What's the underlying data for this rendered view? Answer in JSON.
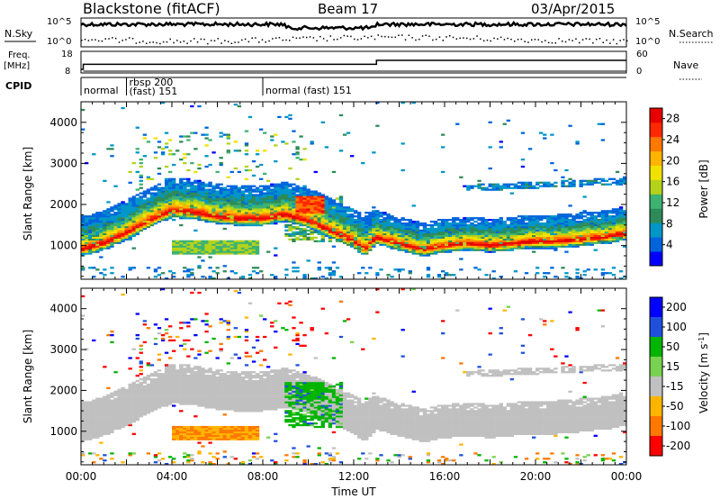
{
  "header": {
    "station": "Blackstone (fitACF)",
    "beam": "Beam 17",
    "date": "03/Apr/2015"
  },
  "strip_labels": {
    "nsky": "N.Sky",
    "nsearch": "N.Search",
    "freq_line1": "Freq.",
    "freq_line2": "[MHz]",
    "nave": "Nave",
    "cpid": "CPID"
  },
  "noise_axis": {
    "left_ticks": [
      "10^5",
      "10^0"
    ],
    "right_ticks": [
      "10^5",
      "10^0"
    ]
  },
  "freq_axis": {
    "left_ticks": [
      "18",
      "8"
    ],
    "right_ticks": [
      "60",
      "0"
    ]
  },
  "cpid_segments": [
    {
      "start_hour": 0.0,
      "label_line1": "normal",
      "label_line2": ""
    },
    {
      "start_hour": 2.0,
      "label_line1": "rbsp 200",
      "label_line2": "(fast) 151"
    },
    {
      "start_hour": 8.0,
      "label_line1": "normal (fast) 151",
      "label_line2": ""
    }
  ],
  "frequency_series": {
    "name": "Freq. [MHz]",
    "x_hours": [
      0.0,
      0.1,
      0.1,
      13.0,
      13.0,
      24.0
    ],
    "y_mhz": [
      8.0,
      8.0,
      10.8,
      10.8,
      13.0,
      13.0
    ]
  },
  "chart_data": [
    {
      "type": "heatmap",
      "name": "power-panel",
      "xlabel": "",
      "ylabel": "Slant Range [km]",
      "xlim": [
        0,
        24
      ],
      "ylim": [
        180,
        4500
      ],
      "y_ticks": [
        "1000",
        "2000",
        "3000",
        "4000"
      ],
      "y_tick_values": [
        1000,
        2000,
        3000,
        4000
      ],
      "colorbar": {
        "label": "Power [dB]",
        "ticks": [
          "4",
          "8",
          "12",
          "16",
          "20",
          "24",
          "28"
        ],
        "range": [
          0,
          30
        ],
        "colors": [
          "#0000ff",
          "#0064dc",
          "#0096c8",
          "#2e8b57",
          "#3cb371",
          "#b4d219",
          "#f0e100",
          "#ffb400",
          "#ff7800",
          "#ff2800",
          "#e60000"
        ]
      },
      "features": [
        {
          "name": "main-echo-band",
          "x_hours": [
            0,
            1,
            2,
            3,
            4,
            5,
            6,
            7,
            8,
            9,
            10,
            11,
            12,
            12.5,
            13,
            14,
            15,
            16,
            17,
            18,
            19,
            20,
            21,
            22,
            23,
            24
          ],
          "range_km": [
            900,
            1050,
            1300,
            1600,
            1850,
            1800,
            1700,
            1650,
            1650,
            1750,
            1600,
            1350,
            1100,
            900,
            1200,
            1050,
            900,
            1000,
            1050,
            1000,
            1050,
            1100,
            1100,
            1150,
            1200,
            1300
          ],
          "peak_power_db": 28
        },
        {
          "name": "lower-patch",
          "x_start": 4.0,
          "x_end": 7.9,
          "range_km": 950,
          "peak_power_db": 14
        },
        {
          "name": "upper-patch",
          "x_start": 9.5,
          "x_end": 10.6,
          "range_km": 2000,
          "peak_power_db": 24
        },
        {
          "name": "far-band",
          "x_start": 17.0,
          "x_end": 24.0,
          "range_km": 2450,
          "peak_power_db": 6
        }
      ]
    },
    {
      "type": "heatmap",
      "name": "velocity-panel",
      "xlabel": "Time UT",
      "ylabel": "Slant Range [km]",
      "xlim": [
        0,
        24
      ],
      "ylim": [
        180,
        4500
      ],
      "x_ticks": [
        "00:00",
        "04:00",
        "08:00",
        "12:00",
        "16:00",
        "20:00",
        "00:00"
      ],
      "x_tick_values": [
        0,
        4,
        8,
        12,
        16,
        20,
        24
      ],
      "y_ticks": [
        "1000",
        "2000",
        "3000",
        "4000"
      ],
      "y_tick_values": [
        1000,
        2000,
        3000,
        4000
      ],
      "colorbar": {
        "label": "Velocity [m s^-1]",
        "ticks": [
          "200",
          "100",
          "50",
          "15",
          "-15",
          "-50",
          "-100",
          "-200"
        ],
        "colors": [
          "#0000ff",
          "#1e50dc",
          "#00b400",
          "#78d250",
          "#c0c0c0",
          "#ffb400",
          "#ff7800",
          "#ff0000"
        ]
      },
      "features": [
        {
          "name": "ground-scatter",
          "velocity_ms": 0
        },
        {
          "name": "positive-flow",
          "x_start": 10.3,
          "x_end": 11.6,
          "range_km": 1500,
          "velocity_ms": 60
        },
        {
          "name": "negative-flow",
          "x_start": 4.0,
          "x_end": 7.9,
          "range_km": 1000,
          "velocity_ms": -60
        },
        {
          "name": "blue-patches",
          "x_start": 4.5,
          "x_end": 9.8,
          "range_km": 3100,
          "velocity_ms": 180
        }
      ]
    }
  ]
}
